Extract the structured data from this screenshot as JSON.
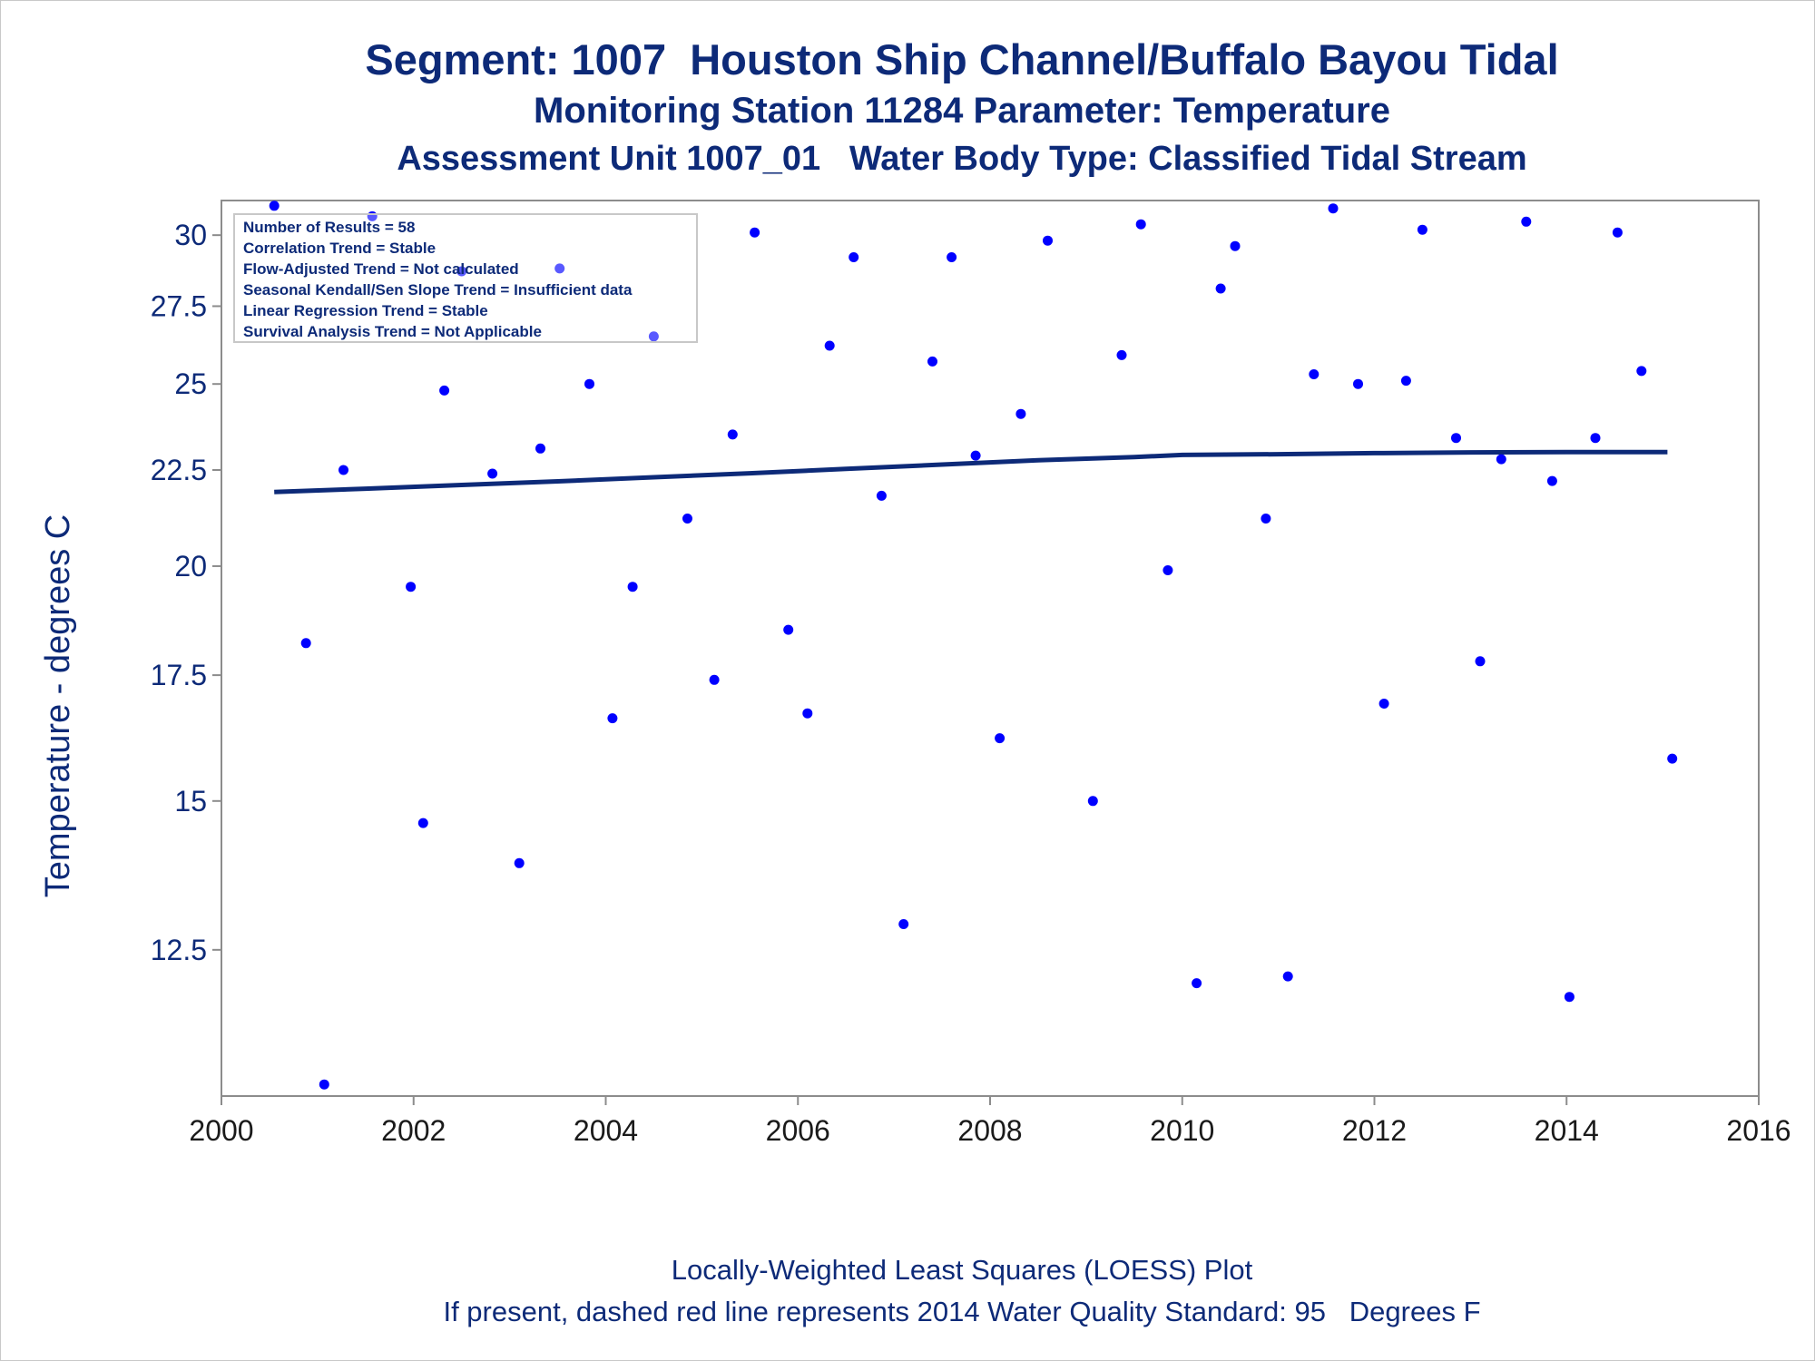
{
  "titles": {
    "line1": "Segment: 1007  Houston Ship Channel/Buffalo Bayou Tidal",
    "line2": "Monitoring Station 11284 Parameter: Temperature",
    "line3": "Assessment Unit 1007_01   Water Body Type: Classified Tidal Stream"
  },
  "footnotes": {
    "line1": "Locally-Weighted Least Squares (LOESS) Plot",
    "line2": "If present, dashed red line represents 2014 Water Quality Standard: 95   Degrees F"
  },
  "info_box": [
    "Number of Results = 58",
    "Correlation Trend = Stable",
    "Flow-Adjusted Trend = Not calculated",
    "Seasonal Kendall/Sen Slope Trend = Insufficient data",
    "Linear Regression Trend = Stable",
    "Survival Analysis Trend = Not Applicable"
  ],
  "colors": {
    "title": "#0d2a78",
    "points": "#0000ff",
    "loess": "#0d2a78",
    "axis": "#8c8c8c"
  },
  "chart_data": {
    "type": "scatter",
    "title": "Segment: 1007  Houston Ship Channel/Buffalo Bayou Tidal",
    "xlabel": "",
    "ylabel": "Temperature - degrees C",
    "y_scale": "log",
    "xlim": [
      2000,
      2016
    ],
    "ylim": [
      10.45,
      31.3
    ],
    "x_ticks": [
      2000,
      2002,
      2004,
      2006,
      2008,
      2010,
      2012,
      2014,
      2016
    ],
    "y_ticks": [
      12.5,
      15,
      17.5,
      20,
      22.5,
      25,
      27.5,
      30
    ],
    "y_tick_labels": [
      "12.5",
      "15",
      "17.5",
      "20",
      "22.5",
      "25",
      "27.5",
      "30"
    ],
    "grid": false,
    "series": [
      {
        "type": "scatter",
        "points": [
          [
            2000.55,
            31.1
          ],
          [
            2000.88,
            18.2
          ],
          [
            2001.07,
            10.6
          ],
          [
            2001.27,
            22.5
          ],
          [
            2001.57,
            30.7
          ],
          [
            2001.97,
            19.5
          ],
          [
            2002.1,
            14.6
          ],
          [
            2002.32,
            24.8
          ],
          [
            2002.5,
            28.7
          ],
          [
            2002.82,
            22.4
          ],
          [
            2003.1,
            13.9
          ],
          [
            2003.32,
            23.1
          ],
          [
            2003.52,
            28.8
          ],
          [
            2003.83,
            25.0
          ],
          [
            2004.07,
            16.6
          ],
          [
            2004.28,
            19.5
          ],
          [
            2004.5,
            26.5
          ],
          [
            2004.85,
            21.2
          ],
          [
            2005.13,
            17.4
          ],
          [
            2005.32,
            23.5
          ],
          [
            2005.55,
            30.1
          ],
          [
            2005.9,
            18.5
          ],
          [
            2006.1,
            16.7
          ],
          [
            2006.33,
            26.2
          ],
          [
            2006.58,
            29.2
          ],
          [
            2006.87,
            21.8
          ],
          [
            2007.1,
            12.9
          ],
          [
            2007.4,
            25.7
          ],
          [
            2007.6,
            29.2
          ],
          [
            2007.85,
            22.9
          ],
          [
            2008.1,
            16.2
          ],
          [
            2008.32,
            24.1
          ],
          [
            2008.6,
            29.8
          ],
          [
            2009.07,
            15.0
          ],
          [
            2009.37,
            25.9
          ],
          [
            2009.57,
            30.4
          ],
          [
            2009.85,
            19.9
          ],
          [
            2010.15,
            12.0
          ],
          [
            2010.4,
            28.1
          ],
          [
            2010.55,
            29.6
          ],
          [
            2010.87,
            21.2
          ],
          [
            2011.1,
            12.1
          ],
          [
            2011.37,
            25.3
          ],
          [
            2011.57,
            31.0
          ],
          [
            2011.83,
            25.0
          ],
          [
            2012.1,
            16.9
          ],
          [
            2012.33,
            25.1
          ],
          [
            2012.5,
            30.2
          ],
          [
            2012.85,
            23.4
          ],
          [
            2013.1,
            17.8
          ],
          [
            2013.32,
            22.8
          ],
          [
            2013.58,
            30.5
          ],
          [
            2013.85,
            22.2
          ],
          [
            2014.03,
            11.8
          ],
          [
            2014.3,
            23.4
          ],
          [
            2014.53,
            30.1
          ],
          [
            2014.78,
            25.4
          ],
          [
            2015.1,
            15.8
          ]
        ]
      },
      {
        "type": "line",
        "x": [
          2000.55,
          2001.5,
          2002.5,
          2003.5,
          2004.5,
          2005.5,
          2006.5,
          2007.5,
          2008.5,
          2009.5,
          2010.0,
          2011.0,
          2012.0,
          2013.0,
          2014.0,
          2015.05
        ],
        "values": [
          21.9,
          21.99,
          22.09,
          22.19,
          22.3,
          22.41,
          22.53,
          22.65,
          22.77,
          22.86,
          22.92,
          22.94,
          22.97,
          22.99,
          23.0,
          23.0
        ]
      }
    ]
  }
}
